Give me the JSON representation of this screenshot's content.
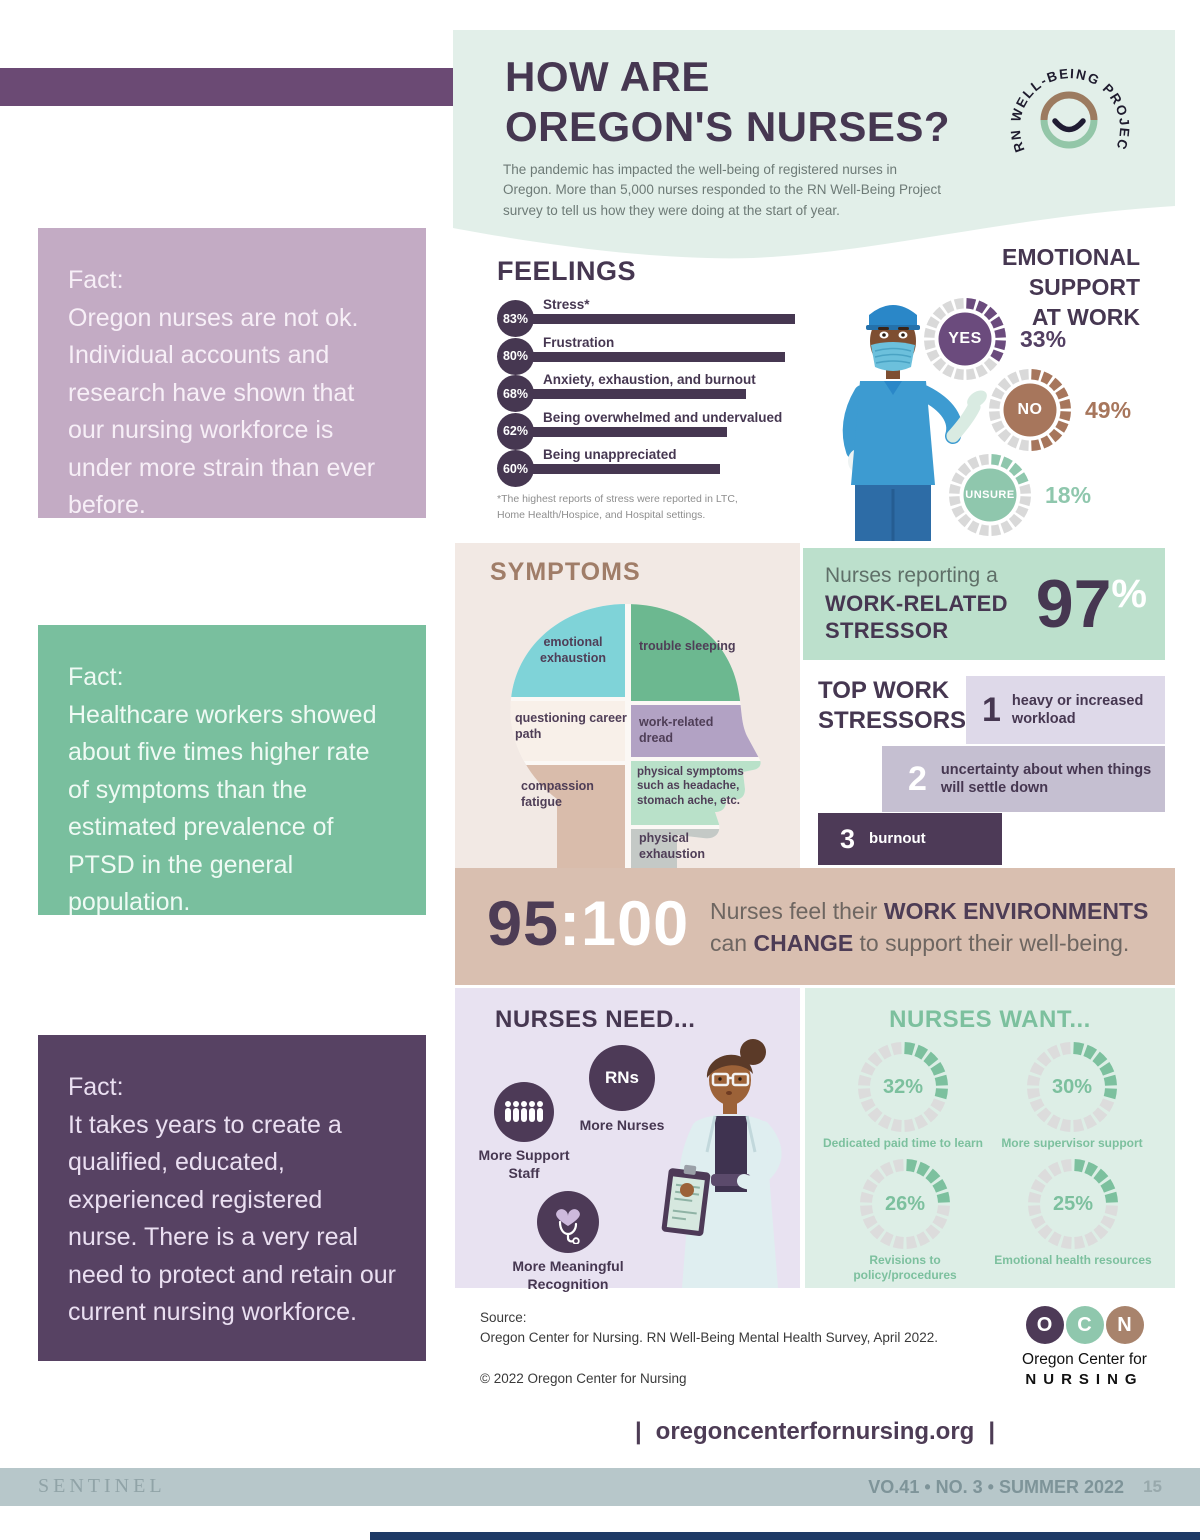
{
  "header": {
    "title_line1": "HOW ARE",
    "title_line2": "OREGON'S NURSES?",
    "intro": "The pandemic has impacted the well-being of registered nurses in Oregon. More than 5,000 nurses responded to the RN Well-Being Project survey to tell us how they were doing at the start of year.",
    "logo_text": "RN WELL-BEING PROJECT"
  },
  "facts": [
    {
      "label": "Fact:",
      "text": "Oregon nurses are not ok. Individual accounts and research have shown that our nursing workforce is under more strain than ever before."
    },
    {
      "label": "Fact:",
      "text": "Healthcare workers showed about five times higher rate of symptoms than the estimated prevalence of PTSD in the general population."
    },
    {
      "label": "Fact:",
      "text": "It takes years to create a qualified, educated, experienced registered nurse. There is a very real need to protect and retain our current nursing workforce."
    }
  ],
  "feelings": {
    "title": "FEELINGS",
    "note_line1": "*The highest reports of stress were reported in LTC,",
    "note_line2": "Home Health/Hospice, and Hospital settings."
  },
  "emotional_support": {
    "title_line1": "EMOTIONAL",
    "title_line2": "SUPPORT",
    "title_line3": "AT WORK",
    "colors": [
      "#6b4b7d",
      "#a7765c",
      "#8fc7ad"
    ],
    "pct_colors": [
      "#533f63",
      "#a7765c",
      "#8fc7ad"
    ],
    "track_color": "#d9d9d9"
  },
  "symptoms": {
    "title": "SYMPTOMS",
    "segments": [
      {
        "label": "emotional exhaustion",
        "color": "#7fd3d8"
      },
      {
        "label": "trouble sleeping",
        "color": "#6cb890"
      },
      {
        "label": "questioning career path",
        "color": "#f8f0e9"
      },
      {
        "label": "work-related dread",
        "color": "#b2a2c4"
      },
      {
        "label": "compassion fatigue",
        "color": "#d9bcab"
      },
      {
        "label": "physical symptoms such as headache, stomach ache, etc.",
        "color": "#b9e1c9"
      },
      {
        "label": "physical exhaustion",
        "color": "#c4c9c6"
      }
    ]
  },
  "stressor_97": {
    "intro": "Nurses reporting a",
    "bold1": "WORK-RELATED",
    "bold2": "STRESSOR",
    "value": "97",
    "percent_sign": "%"
  },
  "top_stressors": {
    "title": "TOP WORK STRESSORS",
    "items": [
      {
        "num": "1",
        "label": "heavy or increased workload"
      },
      {
        "num": "2",
        "label": "uncertainty about when things will settle down"
      },
      {
        "num": "3",
        "label": "burnout"
      }
    ]
  },
  "ratio_banner": {
    "ratio_dark": "95",
    "ratio_light": ":100",
    "t1": "Nurses feel their ",
    "b1": "WORK ENVIRONMENTS",
    "t2": "can ",
    "b2": "CHANGE",
    "t3": " to support their well-being."
  },
  "nurses_need": {
    "title": "NURSES NEED...",
    "rn_badge": "RNs",
    "items": [
      {
        "label": "More Nurses"
      },
      {
        "label": "More Support Staff"
      },
      {
        "label": "More Meaningful Recognition"
      }
    ]
  },
  "nurses_want": {
    "title": "NURSES WANT...",
    "ring_color": "#7cc09e",
    "track_color": "#dcdcdc"
  },
  "source": {
    "label": "Source:",
    "line": "Oregon Center for Nursing. RN Well-Being Mental Health Survey, April 2022.",
    "copyright": "© 2022 Oregon Center for Nursing"
  },
  "ocn_logo": {
    "letter1": "O",
    "letter2": "C",
    "letter3": "N",
    "line1": "Oregon Center for",
    "line2": "NURSING"
  },
  "url_banner": {
    "pipe": "|",
    "text": "oregoncenterfornursing.org"
  },
  "footer": {
    "magazine": "SENTINEL",
    "issue": "VO.41 • NO. 3 • SUMMER 2022",
    "page": "15"
  },
  "chart_data": [
    {
      "type": "bar",
      "orientation": "horizontal",
      "title": "FEELINGS",
      "categories": [
        "Stress*",
        "Frustration",
        "Anxiety, exhaustion, and burnout",
        "Being overwhelmed and undervalued",
        "Being unappreciated"
      ],
      "values": [
        83,
        80,
        68,
        62,
        60
      ],
      "unit": "%",
      "xlim": [
        0,
        100
      ],
      "note": "*The highest reports of stress were reported in LTC, Home Health/Hospice, and Hospital settings.",
      "bar_color": "#463751"
    },
    {
      "type": "pie",
      "title": "EMOTIONAL SUPPORT AT WORK",
      "categories": [
        "YES",
        "NO",
        "UNSURE"
      ],
      "values": [
        33,
        49,
        18
      ],
      "unit": "%"
    },
    {
      "type": "pie",
      "title": "Nurses reporting a WORK-RELATED STRESSOR",
      "categories": [
        "Work-related stressor"
      ],
      "values": [
        97
      ],
      "unit": "%"
    },
    {
      "type": "pie",
      "title": "NURSES WANT...",
      "categories": [
        "Dedicated paid time to learn",
        "More supervisor support",
        "Revisions to policy/procedures",
        "Emotional health resources"
      ],
      "values": [
        32,
        30,
        26,
        25
      ],
      "unit": "%"
    },
    {
      "type": "other",
      "title": "95:100",
      "description": "Nurses feel their WORK ENVIRONMENTS can CHANGE to support their well-being."
    }
  ]
}
